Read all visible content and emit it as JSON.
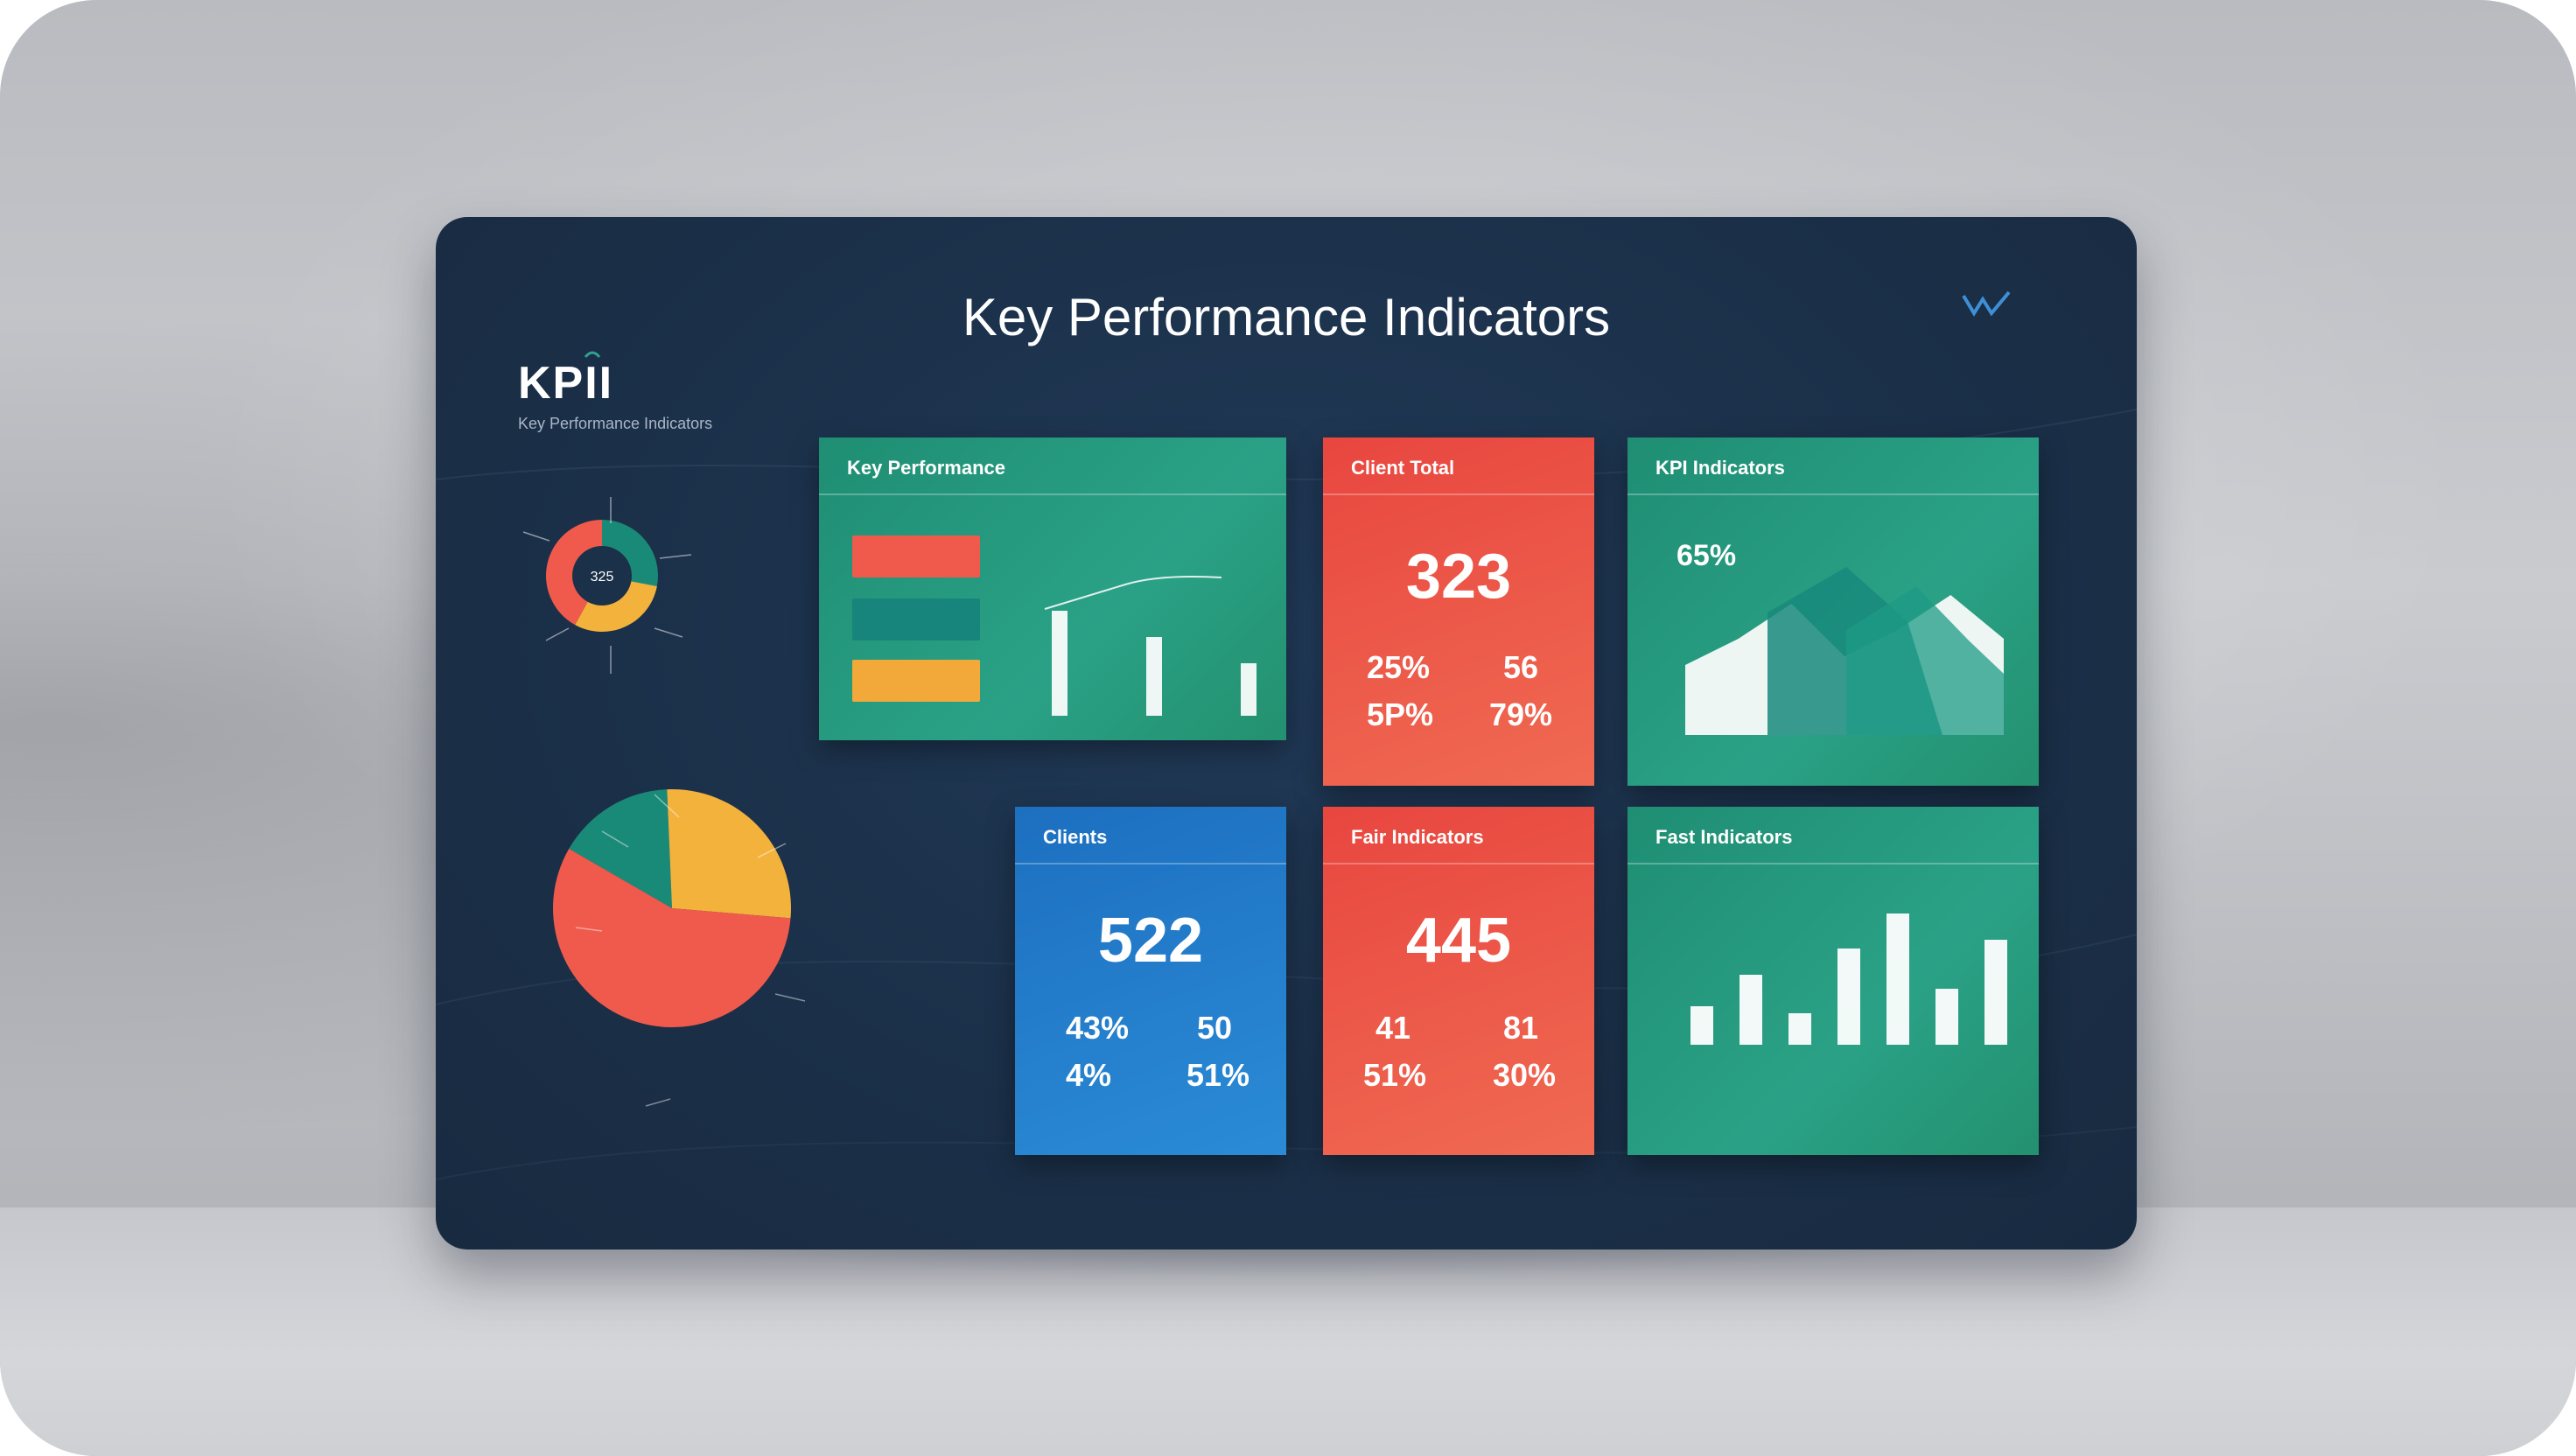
{
  "dashboard": {
    "title": "Key Performance Indicators",
    "brand": "KPII",
    "brand_sub": "Key Performance Indicators",
    "donut_center": "325",
    "pie_slices": [
      {
        "value": 16,
        "color": "#1a8a78"
      },
      {
        "value": 27,
        "color": "#f3b23c"
      },
      {
        "value": 57,
        "color": "#ef5a4c"
      }
    ],
    "donut_slices": [
      {
        "value": 28,
        "color": "#1a8a78"
      },
      {
        "value": 30,
        "color": "#f3b23c"
      },
      {
        "value": 42,
        "color": "#ef5a4c"
      }
    ]
  },
  "cards": {
    "performance": {
      "title": "Key Performance",
      "legend_colors": [
        "#ef5a4c",
        "#1a8a78",
        "#f3b23c"
      ]
    },
    "clients": {
      "title": "Client Total",
      "value": "323",
      "stats": [
        "25%",
        "56",
        "5P%",
        "79%"
      ]
    },
    "kpi_indicators": {
      "title": "KPI Indicators",
      "value": "65%"
    },
    "clients2": {
      "title": "Clients",
      "value": "522",
      "stats": [
        "43%",
        "50",
        "4%",
        "51%"
      ]
    },
    "indicators": {
      "title": "Fair Indicators",
      "value": "445",
      "stats": [
        "41",
        "81",
        "51%",
        "30%"
      ]
    },
    "factors": {
      "title": "Fast Indicators"
    }
  },
  "chart_data": [
    {
      "type": "pie",
      "values": [
        16,
        27,
        57
      ]
    },
    {
      "type": "pie",
      "values": [
        28,
        30,
        42
      ],
      "center_label": "325"
    },
    {
      "type": "bar",
      "values": [
        60,
        45,
        30
      ]
    },
    {
      "type": "area",
      "values": [
        40,
        55,
        75,
        45,
        60,
        80,
        55
      ]
    },
    {
      "type": "bar",
      "values": [
        22,
        40,
        18,
        55,
        75,
        32,
        60
      ]
    }
  ]
}
